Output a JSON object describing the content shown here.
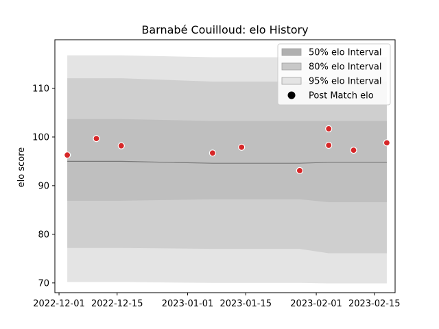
{
  "chart_data": {
    "type": "scatter",
    "title": "Barnabé Couilloud: elo History",
    "xlabel": "",
    "ylabel": "elo score",
    "xlim": [
      "2022-11-30",
      "2023-02-20"
    ],
    "ylim": [
      68,
      120
    ],
    "yticks": [
      70,
      80,
      90,
      100,
      110
    ],
    "xticks": [
      "2022-12-01",
      "2022-12-15",
      "2023-01-01",
      "2023-01-15",
      "2023-02-01",
      "2023-02-15"
    ],
    "legend_position": "top-right",
    "legend": [
      {
        "label": "50% elo Interval",
        "color": "#b0b0b0"
      },
      {
        "label": "80% elo Interval",
        "color": "#c8c8c8"
      },
      {
        "label": "95% elo Interval",
        "color": "#e4e4e4"
      },
      {
        "label": "Post Match elo",
        "color": "#000000"
      }
    ],
    "band_x": [
      "2022-12-03",
      "2022-12-16",
      "2023-01-07",
      "2023-01-28",
      "2023-02-04",
      "2023-02-18"
    ],
    "mean": [
      95.0,
      95.0,
      94.6,
      94.6,
      94.8,
      94.8
    ],
    "bands": {
      "p95": {
        "upper": [
          116.8,
          116.8,
          116.4,
          116.4,
          116.4,
          116.4
        ],
        "lower": [
          70.2,
          70.2,
          70.0,
          70.0,
          69.9,
          69.9
        ]
      },
      "p80": {
        "upper": [
          112.1,
          112.1,
          111.4,
          111.4,
          111.4,
          111.4
        ],
        "lower": [
          77.2,
          77.2,
          77.0,
          77.0,
          76.1,
          76.1
        ]
      },
      "p50": {
        "upper": [
          103.7,
          103.7,
          103.3,
          103.3,
          103.3,
          103.3
        ],
        "lower": [
          86.9,
          86.9,
          87.2,
          87.2,
          86.6,
          86.6
        ]
      }
    },
    "points": [
      {
        "x": "2022-12-03",
        "y": 96.3
      },
      {
        "x": "2022-12-10",
        "y": 99.7
      },
      {
        "x": "2022-12-16",
        "y": 98.2
      },
      {
        "x": "2023-01-07",
        "y": 96.7
      },
      {
        "x": "2023-01-14",
        "y": 97.9
      },
      {
        "x": "2023-01-28",
        "y": 93.1
      },
      {
        "x": "2023-02-04",
        "y": 101.7
      },
      {
        "x": "2023-02-04",
        "y": 98.3
      },
      {
        "x": "2023-02-10",
        "y": 97.3
      },
      {
        "x": "2023-02-18",
        "y": 98.8
      }
    ],
    "point_color": "#d62728",
    "band_colors": {
      "p95": "#e4e4e4",
      "p80": "#cfcfcf",
      "p50": "#bfbfbf"
    },
    "mean_color": "#777777"
  }
}
